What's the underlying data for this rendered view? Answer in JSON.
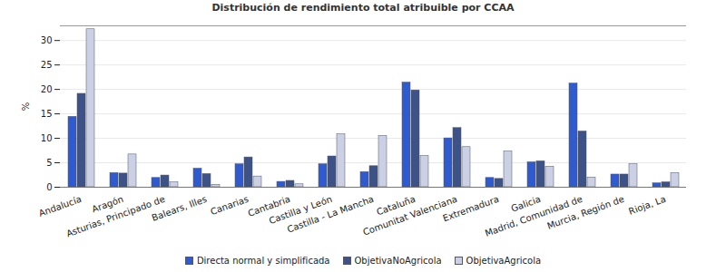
{
  "chart_data": {
    "type": "bar",
    "title": "Distribución de rendimiento total atribuible por CCAA",
    "y_label": "%",
    "categories": [
      "Andalucía",
      "Aragón",
      "Asturias, Principado de",
      "Balears, Illes",
      "Canarias",
      "Cantabria",
      "Castilla y León",
      "Castilla - La Mancha",
      "Cataluña",
      "Comunitat Valenciana",
      "Extremadura",
      "Galicia",
      "Madrid, Comunidad de",
      "Murcia, Región de",
      "Rioja, La"
    ],
    "series": [
      {
        "name": "Directa normal y simplificada",
        "color": "#2f5bcf",
        "values": [
          14.4,
          2.9,
          1.9,
          3.8,
          4.7,
          1.1,
          4.7,
          3.1,
          21.4,
          10.0,
          1.9,
          5.1,
          21.2,
          2.6,
          0.8
        ]
      },
      {
        "name": "ObjetivaNoAgricola",
        "color": "#3d5286",
        "values": [
          19.1,
          2.8,
          2.4,
          2.7,
          6.1,
          1.3,
          6.3,
          4.3,
          19.8,
          12.1,
          1.7,
          5.3,
          11.4,
          2.6,
          1.0
        ]
      },
      {
        "name": "ObjetivaAgricola",
        "color": "#cbd0e4",
        "values": [
          32.3,
          6.7,
          1.0,
          0.5,
          2.2,
          0.6,
          10.8,
          10.5,
          6.4,
          8.2,
          7.3,
          4.2,
          2.0,
          4.7,
          2.9
        ]
      }
    ],
    "ylim": [
      0,
      33
    ],
    "yticks": [
      0,
      5,
      10,
      15,
      20,
      25,
      30
    ],
    "grid": true,
    "legend": "bottom"
  }
}
